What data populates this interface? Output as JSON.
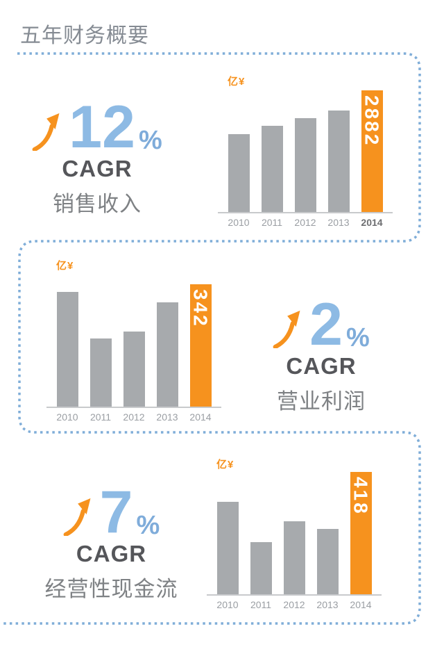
{
  "page": {
    "title": "五年财务概要"
  },
  "colors": {
    "accent_orange": "#f6921e",
    "bar_gray": "#a7aaad",
    "number_blue": "#8dbae4",
    "percent_blue": "#7facda",
    "dash_border_blue": "#7fadd8",
    "cagr_text_gray": "#55565a",
    "metric_text_gray": "#7e8184",
    "title_gray": "#858b93",
    "year_label_gray": "#9a9ea3",
    "axis_gray": "#c8cacc"
  },
  "sections": [
    {
      "value": "12",
      "percent": "%",
      "cagr_word": "CAGR",
      "metric": "销售收入"
    },
    {
      "value": "2",
      "percent": "%",
      "cagr_word": "CAGR",
      "metric": "营业利润"
    },
    {
      "value": "7",
      "percent": "%",
      "cagr_word": "CAGR",
      "metric": "经营性现金流"
    }
  ],
  "chart_data": [
    {
      "type": "bar",
      "title": "销售收入",
      "unit": "亿¥",
      "categories": [
        "2010",
        "2011",
        "2012",
        "2013",
        "2014"
      ],
      "values": [
        1845,
        2040,
        2225,
        2405,
        2882
      ],
      "highlight_index": 4,
      "highlight_label": "2882",
      "bold_last_category": true,
      "cagr": "12%",
      "legend": "off",
      "grid": "off",
      "ylim": [
        0,
        2882
      ]
    },
    {
      "type": "bar",
      "title": "营业利润",
      "unit": "亿¥",
      "categories": [
        "2010",
        "2011",
        "2012",
        "2013",
        "2014"
      ],
      "values": [
        321,
        190,
        210,
        291,
        342
      ],
      "highlight_index": 4,
      "highlight_label": "342",
      "bold_last_category": false,
      "cagr": "2%",
      "legend": "off",
      "grid": "off",
      "ylim": [
        0,
        342
      ]
    },
    {
      "type": "bar",
      "title": "经营性现金流",
      "unit": "亿¥",
      "categories": [
        "2010",
        "2011",
        "2012",
        "2013",
        "2014"
      ],
      "values": [
        316,
        178,
        249,
        223,
        418
      ],
      "highlight_index": 4,
      "highlight_label": "418",
      "bold_last_category": false,
      "cagr": "7%",
      "legend": "off",
      "grid": "off",
      "ylim": [
        0,
        418
      ]
    }
  ]
}
